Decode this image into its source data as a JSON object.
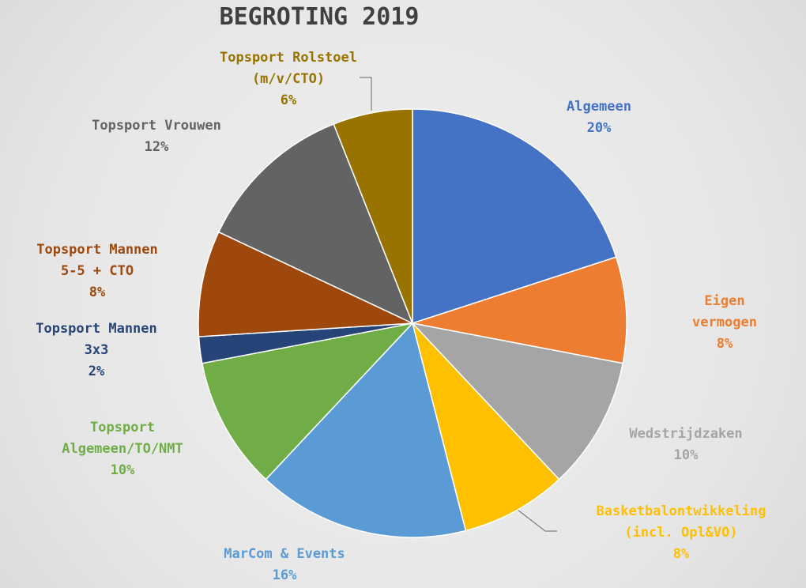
{
  "chart_data": {
    "type": "pie",
    "title": "BEGROTING 2019",
    "categories": [
      "Algemeen",
      "Eigen vermogen",
      "Wedstrijdzaken",
      "Basketbalontwikkeling\n(incl. Opl&VO)",
      "MarCom & Events",
      "Topsport\nAlgemeen/TO/NMT",
      "Topsport Mannen\n3x3",
      "Topsport Mannen\n5-5 + CTO",
      "Topsport Vrouwen",
      "Topsport Rolstoel\n(m/v/CTO)"
    ],
    "values": [
      20,
      8,
      10,
      8,
      16,
      10,
      2,
      8,
      12,
      6
    ],
    "value_labels": [
      "20%",
      "8%",
      "10%",
      "8%",
      "16%",
      "10%",
      "2%",
      "8%",
      "12%",
      "6%"
    ],
    "colors": [
      "#4472c4",
      "#ed7d31",
      "#a5a5a5",
      "#ffc000",
      "#5b9bd5",
      "#70ad47",
      "#264478",
      "#9e480e",
      "#636363",
      "#997300"
    ]
  }
}
